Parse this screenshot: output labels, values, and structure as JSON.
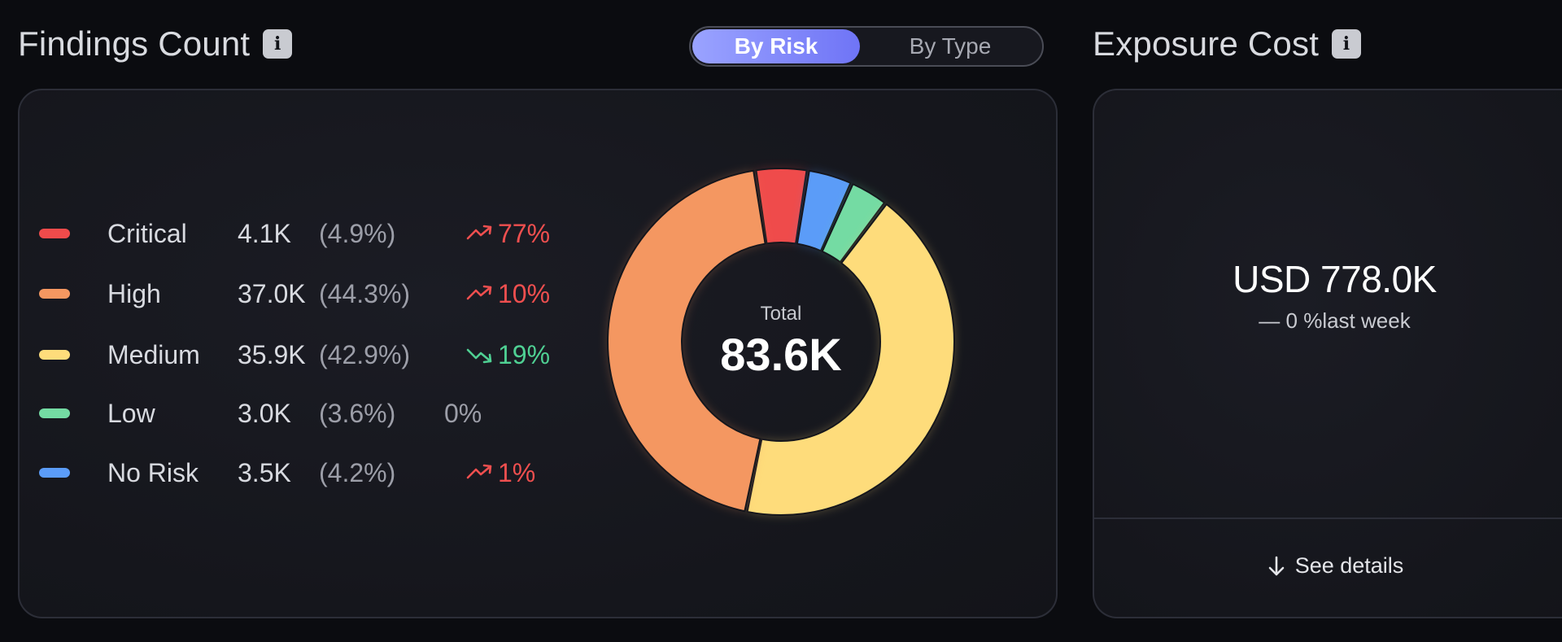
{
  "findings": {
    "title": "Findings Count",
    "total_label": "Total",
    "total_value": "83.6K",
    "toggle": {
      "active": "By Risk",
      "inactive": "By Type"
    },
    "items": [
      {
        "label": "Critical",
        "count": "4.1K",
        "pct": "(4.9%)",
        "trend": "77%",
        "direction": "up",
        "color": "#ef4b4b",
        "share": 4.9
      },
      {
        "label": "High",
        "count": "37.0K",
        "pct": "(44.3%)",
        "trend": "10%",
        "direction": "up",
        "color": "#f49761",
        "share": 44.3
      },
      {
        "label": "Medium",
        "count": "35.9K",
        "pct": "(42.9%)",
        "trend": "19%",
        "direction": "down",
        "color": "#fedc7b",
        "share": 42.9
      },
      {
        "label": "Low",
        "count": "3.0K",
        "pct": "(3.6%)",
        "trend": "0%",
        "direction": "flat",
        "color": "#74dba3",
        "share": 3.6
      },
      {
        "label": "No Risk",
        "count": "3.5K",
        "pct": "(4.2%)",
        "trend": "1%",
        "direction": "up",
        "color": "#5b9cf8",
        "share": 4.2
      }
    ],
    "donut_order": [
      "Critical",
      "No Risk",
      "Low",
      "Medium",
      "High"
    ]
  },
  "exposure": {
    "title": "Exposure Cost",
    "value": "USD 778.0K",
    "change": "— 0 %last week",
    "see_details": "See details"
  },
  "colors": {
    "accent": "#7b80f8",
    "up": "#ef4f4f",
    "down": "#4fd093"
  }
}
